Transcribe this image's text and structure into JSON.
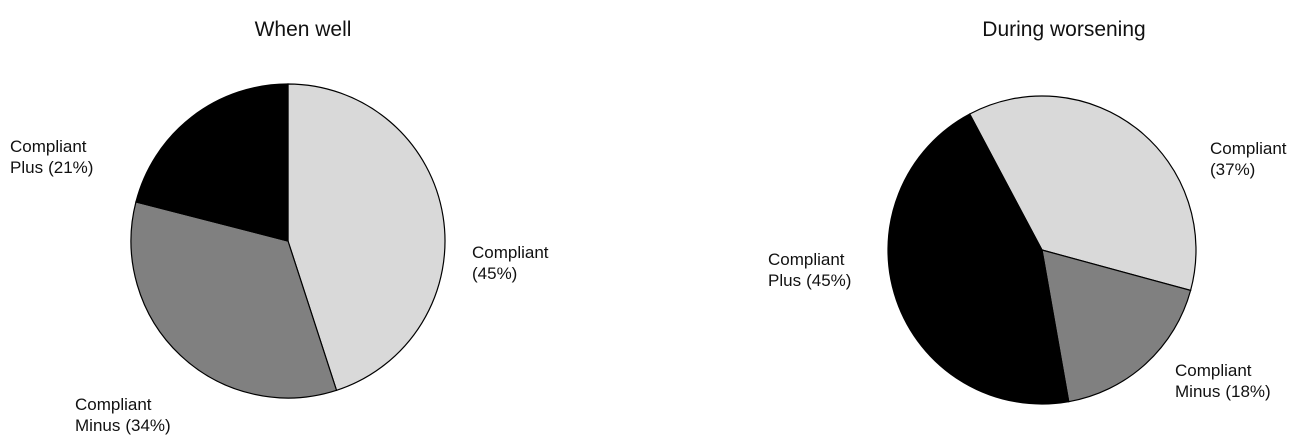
{
  "chart_data": [
    {
      "type": "pie",
      "title": "When well",
      "categories": [
        "Compliant",
        "Compliant Minus",
        "Compliant Plus"
      ],
      "values": [
        45,
        34,
        21
      ],
      "value_labels": [
        "(45%)",
        "(34%)",
        "(21%)"
      ],
      "colors": [
        "#d9d9d9",
        "#808080",
        "#000000"
      ],
      "startangle": 0
    },
    {
      "type": "pie",
      "title": "During worsening",
      "categories": [
        "Compliant",
        "Compliant Minus",
        "Compliant Plus"
      ],
      "values": [
        37,
        18,
        45
      ],
      "value_labels": [
        "(37%)",
        "(18%)",
        "(45%)"
      ],
      "colors": [
        "#d9d9d9",
        "#808080",
        "#000000"
      ],
      "startangle": -28
    }
  ]
}
